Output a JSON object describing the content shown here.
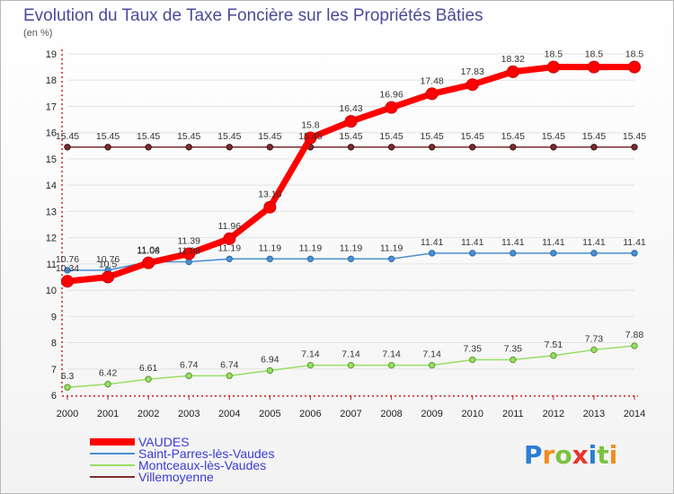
{
  "chart_data": {
    "type": "line",
    "title": "Evolution du Taux de Taxe Foncière sur les Propriétés Bâties",
    "unit": "(en %)",
    "x": [
      "2000",
      "2001",
      "2002",
      "2003",
      "2004",
      "2005",
      "2006",
      "2007",
      "2008",
      "2009",
      "2010",
      "2011",
      "2012",
      "2013",
      "2014"
    ],
    "ylim": [
      6,
      19
    ],
    "yticks": [
      6,
      7,
      8,
      9,
      10,
      11,
      12,
      13,
      14,
      15,
      16,
      17,
      18,
      19
    ],
    "series": [
      {
        "name": "VAUDES",
        "color": "#ff0000",
        "values": [
          10.34,
          10.5,
          11.04,
          11.39,
          11.96,
          13.16,
          15.8,
          16.43,
          16.96,
          17.48,
          17.83,
          18.32,
          18.5,
          18.5,
          18.5
        ]
      },
      {
        "name": "Saint-Parres-lès-Vaudes",
        "color": "#4a8fd0",
        "values": [
          10.76,
          10.76,
          11.08,
          11.08,
          11.19,
          11.19,
          11.19,
          11.19,
          11.19,
          11.41,
          11.41,
          11.41,
          11.41,
          11.41,
          11.41
        ]
      },
      {
        "name": "Montceaux-lès-Vaudes",
        "color": "#99dd66",
        "values": [
          6.3,
          6.42,
          6.61,
          6.74,
          6.74,
          6.94,
          7.14,
          7.14,
          7.14,
          7.14,
          7.35,
          7.35,
          7.51,
          7.73,
          7.88
        ]
      },
      {
        "name": "Villemoyenne",
        "color": "#7a2d2d",
        "values": [
          15.45,
          15.45,
          15.45,
          15.45,
          15.45,
          15.45,
          15.45,
          15.45,
          15.45,
          15.45,
          15.45,
          15.45,
          15.45,
          15.45,
          15.45
        ]
      }
    ]
  },
  "logo": {
    "text": "Proxiti",
    "letters": [
      "P",
      "r",
      "o",
      "x",
      "i",
      "t",
      "i"
    ]
  }
}
